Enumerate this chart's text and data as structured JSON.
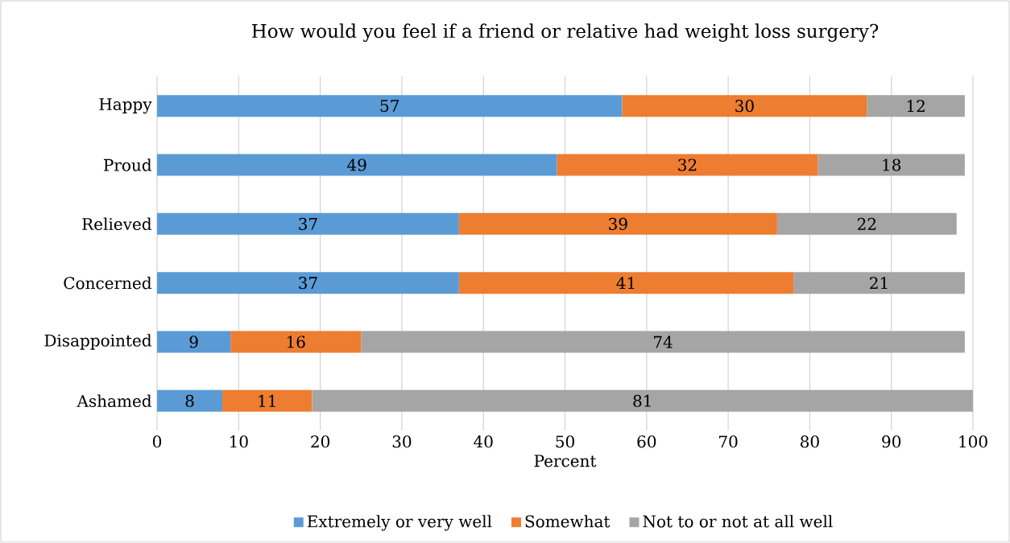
{
  "chart_data": {
    "type": "bar",
    "orientation": "horizontal",
    "stacked": true,
    "title": "How would you feel if a friend or relative had weight loss surgery?",
    "xlabel": "Percent",
    "categories": [
      "Happy",
      "Proud",
      "Relieved",
      "Concerned",
      "Disappointed",
      "Ashamed"
    ],
    "series": [
      {
        "name": "Extremely or very well",
        "color": "#5b9bd5",
        "values": [
          57,
          49,
          37,
          37,
          9,
          8
        ]
      },
      {
        "name": "Somewhat",
        "color": "#ed7d31",
        "values": [
          30,
          32,
          39,
          41,
          16,
          11
        ]
      },
      {
        "name": "Not to or not at all well",
        "color": "#a5a5a5",
        "values": [
          12,
          18,
          22,
          21,
          74,
          81
        ]
      }
    ],
    "xlim": [
      0,
      100
    ],
    "xticks": [
      0,
      10,
      20,
      30,
      40,
      50,
      60,
      70,
      80,
      90,
      100
    ],
    "grid": "x",
    "legend": "bottom",
    "data_labels": true
  }
}
